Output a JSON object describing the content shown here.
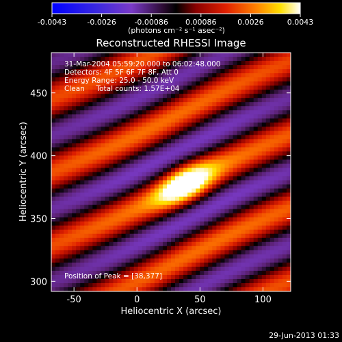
{
  "colorbar": {
    "ticks": [
      "-0.0043",
      "-0.0026",
      "-0.00086",
      "0.00086",
      "0.0026",
      "0.0043"
    ],
    "unit": "(photons cm⁻² s⁻¹ asec⁻²)",
    "range": [
      -0.0043,
      0.0043
    ]
  },
  "chart_data": {
    "type": "heatmap",
    "title": "Reconstructed RHESSI Image",
    "xlabel": "Heliocentric X (arcsec)",
    "ylabel": "Heliocentric Y (arcsec)",
    "xlim": [
      -68,
      122
    ],
    "ylim": [
      292,
      482
    ],
    "x_ticks": [
      -50,
      0,
      50,
      100
    ],
    "y_ticks": [
      300,
      350,
      400,
      450
    ],
    "peak": {
      "x": 38,
      "y": 377
    },
    "colormap": [
      "#000066",
      "#2f2fd0",
      "#7a3ac8",
      "#5a2070",
      "#000000",
      "#8a0000",
      "#e02000",
      "#ff7a00",
      "#ffe000",
      "#ffffff"
    ],
    "annotations": [
      "31-Mar-2004 05:59:20.000 to 06:02:48.000",
      "Detectors: 4F 5F 6F 7F 8F, Att 0",
      "Energy Range: 25.0 - 50.0 keV",
      "Clean     Total counts: 1.57E+04"
    ],
    "peak_label": "Position of Peak = [38,377]",
    "grid": false
  },
  "footer": {
    "timestamp": "29-Jun-2013 01:33"
  }
}
